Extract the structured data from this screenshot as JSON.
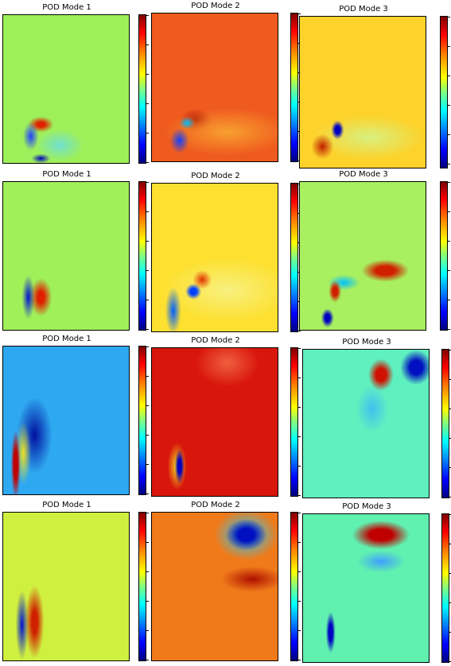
{
  "rows": [
    [
      "POD Mode 1",
      "POD Mode 2",
      "POD Mode 3"
    ],
    [
      "POD Mode 1",
      "POD Mode 2",
      "POD Mode 3"
    ],
    [
      "POD Mode 1",
      "POD Mode 2",
      "POD Mode 3"
    ],
    [
      "POD Mode 1",
      "POD Mode 2",
      "POD Mode 3"
    ]
  ]
}
